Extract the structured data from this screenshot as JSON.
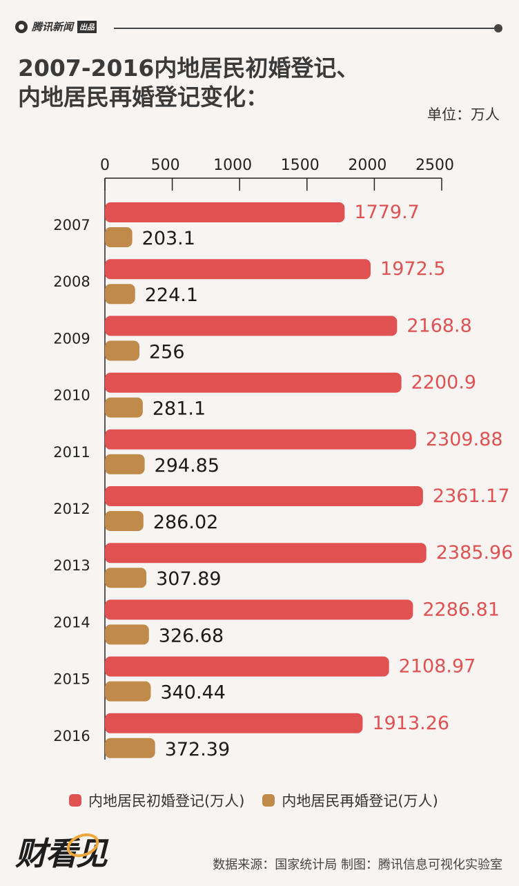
{
  "header": {
    "brand": "腾讯新闻",
    "brand_tag": "出品",
    "title_line1": "2007-2016内地居民初婚登记、",
    "title_line2": "内地居民再婚登记变化：",
    "unit": "单位：万人"
  },
  "colors": {
    "first": "#e05252",
    "re": "#c08a4a",
    "axis": "#222",
    "label": "#1a1a1a"
  },
  "chart_data": {
    "type": "bar",
    "orientation": "horizontal",
    "categories": [
      "2007",
      "2008",
      "2009",
      "2010",
      "2011",
      "2012",
      "2013",
      "2014",
      "2015",
      "2016"
    ],
    "series": [
      {
        "name": "内地居民初婚登记(万人)",
        "values": [
          1779.7,
          1972.5,
          2168.8,
          2200.9,
          2309.88,
          2361.17,
          2385.96,
          2286.81,
          2108.97,
          1913.26
        ],
        "labels": [
          "1779.7",
          "1972.5",
          "2168.8",
          "2200.9",
          "2309.88",
          "2361.17",
          "2385.96",
          "2286.81",
          "2108.97",
          "1913.26"
        ]
      },
      {
        "name": "内地居民再婚登记(万人)",
        "values": [
          203.1,
          224.1,
          256,
          281.1,
          294.85,
          286.02,
          307.89,
          326.68,
          340.44,
          372.39
        ],
        "labels": [
          "203.1",
          "224.1",
          "256",
          "281.1",
          "294.85",
          "286.02",
          "307.89",
          "326.68",
          "340.44",
          "372.39"
        ]
      }
    ],
    "xticks": [
      "0",
      "500",
      "1000",
      "1500",
      "2000",
      "2500"
    ],
    "xlim": [
      0,
      2500
    ]
  },
  "legend": {
    "first": "内地居民初婚登记(万人)",
    "re": "内地居民再婚登记(万人)"
  },
  "footer": {
    "logo": "财看见",
    "source": "数据来源：国家统计局 制图：腾讯信息可视化实验室"
  }
}
